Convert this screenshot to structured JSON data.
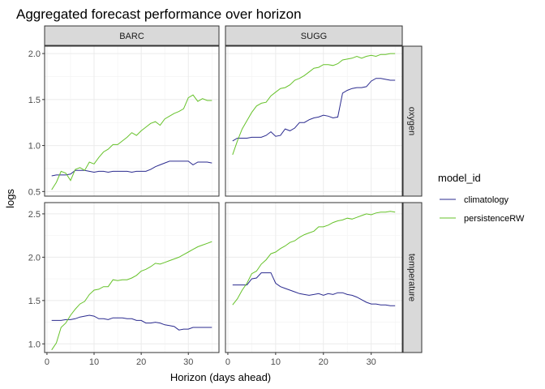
{
  "chart_data": {
    "type": "line",
    "title": "Aggregated forecast performance over horizon",
    "xlabel": "Horizon (days ahead)",
    "ylabel": "logs",
    "columns": [
      "BARC",
      "SUGG"
    ],
    "rows": [
      "oxygen",
      "temperature"
    ],
    "xlim": [
      -0.5,
      36.5
    ],
    "x_ticks": [
      0,
      10,
      20,
      30
    ],
    "row_axes": [
      {
        "row": "oxygen",
        "ylim": [
          0.45,
          2.08
        ],
        "ticks": [
          0.5,
          1.0,
          1.5,
          2.0
        ],
        "tick_labels": [
          "0.5",
          "1.0",
          "1.5",
          "2.0"
        ]
      },
      {
        "row": "temperature",
        "ylim": [
          0.9,
          2.63
        ],
        "ticks": [
          1.0,
          1.5,
          2.0,
          2.5
        ],
        "tick_labels": [
          "1.0",
          "1.5",
          "2.0",
          "2.5"
        ]
      }
    ],
    "legend": {
      "title": "model_id",
      "position": "right",
      "entries": [
        {
          "name": "climatology",
          "color": "#2b2b8f"
        },
        {
          "name": "persistenceRW",
          "color": "#66c22a"
        }
      ]
    },
    "grid": true,
    "panels": [
      {
        "column": "BARC",
        "row": "oxygen",
        "series": [
          {
            "name": "climatology",
            "x": [
              1,
              2,
              3,
              4,
              5,
              6,
              7,
              8,
              9,
              10,
              11,
              12,
              13,
              14,
              15,
              16,
              17,
              18,
              19,
              20,
              21,
              22,
              23,
              24,
              25,
              26,
              27,
              28,
              29,
              30,
              31,
              32,
              33,
              34,
              35
            ],
            "y": [
              0.67,
              0.68,
              0.68,
              0.68,
              0.69,
              0.73,
              0.73,
              0.73,
              0.72,
              0.71,
              0.72,
              0.72,
              0.71,
              0.72,
              0.72,
              0.72,
              0.72,
              0.71,
              0.72,
              0.72,
              0.72,
              0.74,
              0.77,
              0.79,
              0.81,
              0.83,
              0.83,
              0.83,
              0.83,
              0.83,
              0.79,
              0.82,
              0.82,
              0.82,
              0.81
            ]
          },
          {
            "name": "persistenceRW",
            "x": [
              1,
              2,
              3,
              4,
              5,
              6,
              7,
              8,
              9,
              10,
              11,
              12,
              13,
              14,
              15,
              16,
              17,
              18,
              19,
              20,
              21,
              22,
              23,
              24,
              25,
              26,
              27,
              28,
              29,
              30,
              31,
              32,
              33,
              34,
              35
            ],
            "y": [
              0.52,
              0.6,
              0.72,
              0.7,
              0.62,
              0.74,
              0.76,
              0.73,
              0.82,
              0.8,
              0.87,
              0.93,
              0.96,
              1.01,
              1.01,
              1.05,
              1.09,
              1.14,
              1.11,
              1.16,
              1.2,
              1.24,
              1.26,
              1.22,
              1.29,
              1.32,
              1.35,
              1.37,
              1.4,
              1.52,
              1.55,
              1.48,
              1.51,
              1.49,
              1.49
            ]
          }
        ]
      },
      {
        "column": "SUGG",
        "row": "oxygen",
        "series": [
          {
            "name": "climatology",
            "x": [
              1,
              2,
              3,
              4,
              5,
              6,
              7,
              8,
              9,
              10,
              11,
              12,
              13,
              14,
              15,
              16,
              17,
              18,
              19,
              20,
              21,
              22,
              23,
              24,
              25,
              26,
              27,
              28,
              29,
              30,
              31,
              32,
              33,
              34,
              35
            ],
            "y": [
              1.05,
              1.08,
              1.08,
              1.08,
              1.09,
              1.09,
              1.09,
              1.11,
              1.15,
              1.1,
              1.11,
              1.18,
              1.16,
              1.19,
              1.25,
              1.25,
              1.28,
              1.3,
              1.31,
              1.33,
              1.32,
              1.3,
              1.31,
              1.57,
              1.6,
              1.62,
              1.63,
              1.63,
              1.64,
              1.7,
              1.73,
              1.73,
              1.72,
              1.71,
              1.71
            ]
          },
          {
            "name": "persistenceRW",
            "x": [
              1,
              2,
              3,
              4,
              5,
              6,
              7,
              8,
              9,
              10,
              11,
              12,
              13,
              14,
              15,
              16,
              17,
              18,
              19,
              20,
              21,
              22,
              23,
              24,
              25,
              26,
              27,
              28,
              29,
              30,
              31,
              32,
              33,
              34,
              35
            ],
            "y": [
              0.9,
              1.05,
              1.18,
              1.27,
              1.36,
              1.43,
              1.46,
              1.47,
              1.54,
              1.58,
              1.62,
              1.63,
              1.66,
              1.71,
              1.73,
              1.76,
              1.8,
              1.84,
              1.85,
              1.88,
              1.88,
              1.87,
              1.89,
              1.93,
              1.94,
              1.95,
              1.97,
              1.95,
              1.97,
              1.98,
              1.97,
              1.99,
              1.99,
              2.0,
              2.0
            ]
          }
        ]
      },
      {
        "column": "BARC",
        "row": "temperature",
        "series": [
          {
            "name": "climatology",
            "x": [
              1,
              2,
              3,
              4,
              5,
              6,
              7,
              8,
              9,
              10,
              11,
              12,
              13,
              14,
              15,
              16,
              17,
              18,
              19,
              20,
              21,
              22,
              23,
              24,
              25,
              26,
              27,
              28,
              29,
              30,
              31,
              32,
              33,
              34,
              35
            ],
            "y": [
              1.27,
              1.27,
              1.27,
              1.28,
              1.28,
              1.29,
              1.31,
              1.32,
              1.33,
              1.32,
              1.29,
              1.29,
              1.28,
              1.3,
              1.3,
              1.3,
              1.29,
              1.29,
              1.27,
              1.27,
              1.24,
              1.24,
              1.25,
              1.24,
              1.22,
              1.21,
              1.2,
              1.16,
              1.17,
              1.17,
              1.19,
              1.19,
              1.19,
              1.19,
              1.19
            ]
          },
          {
            "name": "persistenceRW",
            "x": [
              1,
              2,
              3,
              4,
              5,
              6,
              7,
              8,
              9,
              10,
              11,
              12,
              13,
              14,
              15,
              16,
              17,
              18,
              19,
              20,
              21,
              22,
              23,
              24,
              25,
              26,
              27,
              28,
              29,
              30,
              31,
              32,
              33,
              34,
              35
            ],
            "y": [
              0.93,
              1.01,
              1.19,
              1.24,
              1.33,
              1.4,
              1.46,
              1.49,
              1.57,
              1.62,
              1.63,
              1.66,
              1.66,
              1.74,
              1.73,
              1.74,
              1.74,
              1.76,
              1.79,
              1.84,
              1.86,
              1.89,
              1.93,
              1.92,
              1.94,
              1.96,
              1.98,
              2.0,
              2.03,
              2.06,
              2.09,
              2.12,
              2.14,
              2.16,
              2.18
            ]
          }
        ]
      },
      {
        "column": "SUGG",
        "row": "temperature",
        "series": [
          {
            "name": "climatology",
            "x": [
              1,
              2,
              3,
              4,
              5,
              6,
              7,
              8,
              9,
              10,
              11,
              12,
              13,
              14,
              15,
              16,
              17,
              18,
              19,
              20,
              21,
              22,
              23,
              24,
              25,
              26,
              27,
              28,
              29,
              30,
              31,
              32,
              33,
              34,
              35
            ],
            "y": [
              1.68,
              1.68,
              1.68,
              1.68,
              1.75,
              1.76,
              1.82,
              1.82,
              1.82,
              1.7,
              1.66,
              1.64,
              1.62,
              1.6,
              1.58,
              1.57,
              1.56,
              1.57,
              1.58,
              1.56,
              1.58,
              1.57,
              1.59,
              1.59,
              1.57,
              1.56,
              1.54,
              1.51,
              1.48,
              1.46,
              1.46,
              1.45,
              1.45,
              1.44,
              1.44
            ]
          },
          {
            "name": "persistenceRW",
            "x": [
              1,
              2,
              3,
              4,
              5,
              6,
              7,
              8,
              9,
              10,
              11,
              12,
              13,
              14,
              15,
              16,
              17,
              18,
              19,
              20,
              21,
              22,
              23,
              24,
              25,
              26,
              27,
              28,
              29,
              30,
              31,
              32,
              33,
              34,
              35
            ],
            "y": [
              1.45,
              1.52,
              1.62,
              1.7,
              1.81,
              1.84,
              1.92,
              1.97,
              2.04,
              2.06,
              2.1,
              2.13,
              2.17,
              2.19,
              2.23,
              2.26,
              2.28,
              2.3,
              2.35,
              2.35,
              2.37,
              2.4,
              2.42,
              2.43,
              2.45,
              2.44,
              2.46,
              2.48,
              2.5,
              2.49,
              2.51,
              2.52,
              2.52,
              2.53,
              2.52
            ]
          }
        ]
      }
    ]
  }
}
